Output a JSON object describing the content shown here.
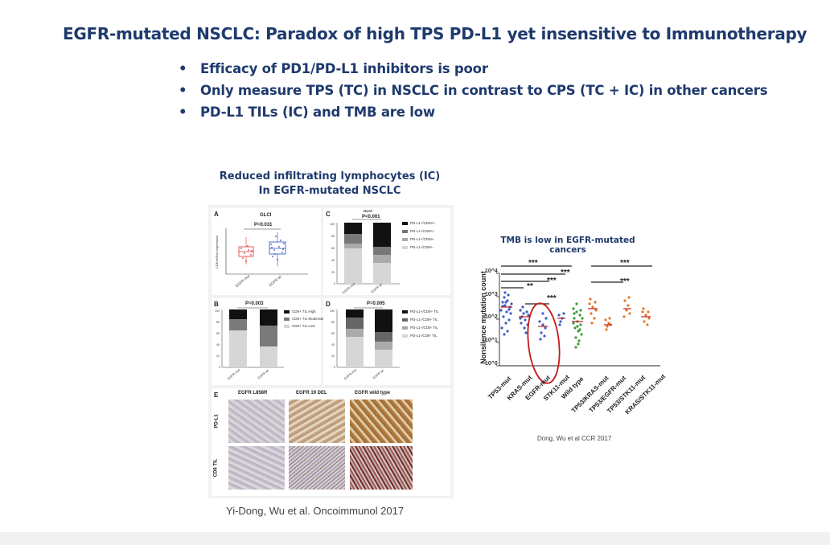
{
  "slide": {
    "title": "EGFR-mutated NSCLC: Paradox of high TPS PD-L1 yet insensitive to Immunotherapy",
    "bullets": [
      "Efficacy of PD1/PD-L1 inhibitors is poor",
      "Only measure TPS (TC) in NSCLC in contrast to CPS (TC + IC) in other cancers",
      "PD-L1 TILs (IC) and TMB are low"
    ]
  },
  "left_figure": {
    "caption_line1": "Reduced infiltrating lymphocytes (IC)",
    "caption_line2": "In EGFR-mutated NSCLC",
    "citation": "Yi-Dong, Wu et al. Oncoimmunol 2017",
    "panel_a": {
      "letter": "A",
      "cohort": "GLCI",
      "pvalue": "P=0.031",
      "ylabel": "CD8 mRNA expression",
      "xlabels": [
        "EGFR mut",
        "EGFR wt"
      ]
    },
    "panel_b": {
      "letter": "B",
      "pvalue": "P=0.003",
      "xlabels": [
        "EGFR mut",
        "EGFR wt"
      ],
      "yticks": [
        "100",
        "80",
        "60",
        "40",
        "20",
        "0"
      ],
      "legend": [
        "CD8+ TIL High",
        "CD8+ TIL Moderate",
        "CD8+ TIL Low"
      ]
    },
    "panel_c": {
      "letter": "C",
      "cohort": "GLCI",
      "pvalue": "P<0.001",
      "xlabels": [
        "EGFR mut",
        "EGFR wt"
      ],
      "yticks": [
        "100",
        "80",
        "60",
        "40",
        "20",
        "0"
      ],
      "legend": [
        "PD-L1+/CD8A+",
        "PD-L1-/CD8A+",
        "PD-L1+/CD8A-",
        "PD-L1-/CD8A-"
      ]
    },
    "panel_d": {
      "letter": "D",
      "pvalue": "P=0.005",
      "xlabels": [
        "EGFR mut",
        "EGFR wt"
      ],
      "yticks": [
        "100",
        "80",
        "60",
        "40",
        "20",
        "0"
      ],
      "legend": [
        "PD-L1+/CD8+ TIL",
        "PD-L1-/CD8+ TIL",
        "PD-L1+/CD8- TIL",
        "PD-L1-/CD8- TIL"
      ]
    },
    "panel_e": {
      "letter": "E",
      "columns": [
        "EGFR L858R",
        "EGFR 19 DEL",
        "EGFR wild type"
      ],
      "rows": [
        "PD-L1",
        "CD8 TIL"
      ]
    }
  },
  "right_figure": {
    "title": "TMB is low in EGFR-mutated cancers",
    "ylabel": "Nonsilence mutation count",
    "yticks": [
      "10^4",
      "10^3",
      "10^2",
      "10^1",
      "10^0"
    ],
    "categories": [
      "TP53-mut",
      "KRAS-mut",
      "EGFR-mut",
      "STK11-mut",
      "Wild type",
      "TP53/KRAS-mut",
      "TP53/EGFR-mut",
      "TP53/STK11-mut",
      "KRAS/STK11-mut"
    ],
    "significance": [
      "***",
      "***",
      "***",
      "**",
      "***",
      "***",
      "***"
    ],
    "citation": "Dong, Wu et al CCR 2017"
  },
  "colors": {
    "title": "#1f3a6d",
    "blue_dots": "#3a5fc4",
    "green_dots": "#3a9a3a",
    "orange_dots": "#e07a2a",
    "circle": "#c41a1a"
  }
}
